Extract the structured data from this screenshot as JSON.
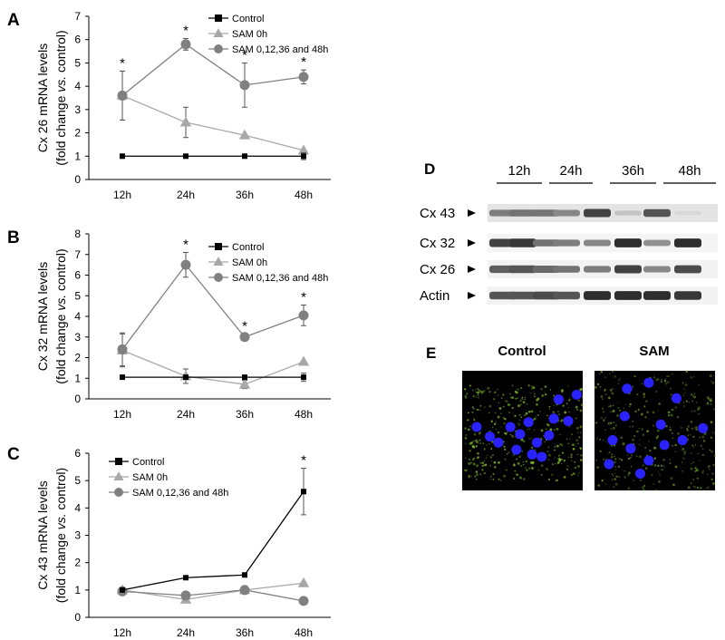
{
  "chart_data": [
    {
      "panel": "A",
      "type": "line",
      "categories": [
        "12h",
        "24h",
        "36h",
        "48h"
      ],
      "ylabel_line1": "Cx 26 mRNA levels",
      "ylabel_line2": "(fold change vs. control)",
      "ylim": [
        0,
        7
      ],
      "yticks": [
        0,
        1,
        2,
        3,
        4,
        5,
        6,
        7
      ],
      "legend_position": "top-right",
      "series": [
        {
          "name": "Control",
          "marker": "square",
          "color": "#000000",
          "values": [
            1,
            1,
            1,
            1
          ],
          "errors": [
            0,
            0,
            0,
            0.15
          ]
        },
        {
          "name": "SAM 0h",
          "marker": "triangle",
          "color": "#a8a8a8",
          "values": [
            3.6,
            2.45,
            1.9,
            1.25
          ],
          "errors": [
            1.05,
            0.65,
            0,
            0
          ]
        },
        {
          "name": "SAM 0,12,36 and 48h",
          "marker": "circle",
          "color": "#808080",
          "values": [
            3.6,
            5.8,
            4.05,
            4.4
          ],
          "errors": [
            1.05,
            0.25,
            0.95,
            0.3
          ]
        }
      ],
      "significance": [
        "*",
        "*",
        "*",
        "*"
      ]
    },
    {
      "panel": "B",
      "type": "line",
      "categories": [
        "12h",
        "24h",
        "36h",
        "48h"
      ],
      "ylabel_line1": "Cx 32 mRNA levels",
      "ylabel_line2": "(fold change vs. control)",
      "ylim": [
        0,
        8
      ],
      "yticks": [
        0,
        1,
        2,
        3,
        4,
        5,
        6,
        7,
        8
      ],
      "legend_position": "top-right",
      "series": [
        {
          "name": "Control",
          "marker": "square",
          "color": "#000000",
          "values": [
            1.05,
            1.05,
            1.05,
            1.05
          ],
          "errors": [
            0,
            0,
            0,
            0.2
          ]
        },
        {
          "name": "SAM 0h",
          "marker": "triangle",
          "color": "#a8a8a8",
          "values": [
            2.35,
            1.1,
            0.7,
            1.8
          ],
          "errors": [
            0.8,
            0.35,
            0.2,
            0
          ]
        },
        {
          "name": "SAM 0,12,36 and 48h",
          "marker": "circle",
          "color": "#808080",
          "values": [
            2.4,
            6.5,
            3.0,
            4.05
          ],
          "errors": [
            0.8,
            0.6,
            0.15,
            0.5
          ]
        }
      ],
      "significance": [
        "",
        "*",
        "*",
        "*"
      ]
    },
    {
      "panel": "C",
      "type": "line",
      "categories": [
        "12h",
        "24h",
        "36h",
        "48h"
      ],
      "ylabel_line1": "Cx 43 mRNA levels",
      "ylabel_line2": "(fold change vs. control)",
      "ylim": [
        0,
        6
      ],
      "yticks": [
        0,
        1,
        2,
        3,
        4,
        5,
        6
      ],
      "legend_position": "top-left",
      "series": [
        {
          "name": "Control",
          "marker": "square",
          "color": "#000000",
          "values": [
            1.0,
            1.45,
            1.55,
            4.6
          ],
          "errors": [
            0,
            0,
            0,
            0.85
          ]
        },
        {
          "name": "SAM 0h",
          "marker": "triangle",
          "color": "#a8a8a8",
          "values": [
            1.0,
            0.65,
            1.0,
            1.25
          ],
          "errors": [
            0,
            0,
            0,
            0
          ]
        },
        {
          "name": "SAM 0,12,36 and 48h",
          "marker": "circle",
          "color": "#808080",
          "values": [
            0.95,
            0.8,
            1.0,
            0.6
          ],
          "errors": [
            0,
            0,
            0.15,
            0
          ]
        }
      ],
      "significance": [
        "",
        "",
        "",
        "*"
      ]
    }
  ],
  "panel_d": {
    "letter": "D",
    "timepoints": [
      "12h",
      "24h",
      "36h",
      "48h"
    ],
    "rows": [
      {
        "label": "Cx 43",
        "intensities": [
          0.55,
          0.6,
          0.6,
          0.5,
          0.85,
          0.2,
          0.75,
          0.1
        ]
      },
      {
        "label": "Cx 32",
        "intensities": [
          0.85,
          0.9,
          0.6,
          0.55,
          0.5,
          0.95,
          0.45,
          0.95
        ]
      },
      {
        "label": "Cx 26",
        "intensities": [
          0.7,
          0.75,
          0.65,
          0.6,
          0.55,
          0.85,
          0.5,
          0.8
        ]
      },
      {
        "label": "Actin",
        "intensities": [
          0.75,
          0.75,
          0.8,
          0.75,
          0.95,
          0.95,
          0.95,
          0.9
        ]
      }
    ]
  },
  "panel_e": {
    "letter": "E",
    "images": [
      {
        "label": "Control",
        "nuclei": [
          [
            0.12,
            0.47
          ],
          [
            0.23,
            0.55
          ],
          [
            0.3,
            0.6
          ],
          [
            0.4,
            0.47
          ],
          [
            0.48,
            0.53
          ],
          [
            0.55,
            0.43
          ],
          [
            0.62,
            0.6
          ],
          [
            0.72,
            0.54
          ],
          [
            0.76,
            0.4
          ],
          [
            0.8,
            0.24
          ],
          [
            0.66,
            0.72
          ],
          [
            0.58,
            0.7
          ],
          [
            0.88,
            0.42
          ],
          [
            0.95,
            0.2
          ],
          [
            0.45,
            0.66
          ]
        ],
        "green": "#8ac62e",
        "nucleus": "#2a22ff"
      },
      {
        "label": "SAM",
        "nuclei": [
          [
            0.27,
            0.15
          ],
          [
            0.45,
            0.1
          ],
          [
            0.25,
            0.38
          ],
          [
            0.68,
            0.23
          ],
          [
            0.55,
            0.45
          ],
          [
            0.15,
            0.58
          ],
          [
            0.3,
            0.65
          ],
          [
            0.58,
            0.62
          ],
          [
            0.73,
            0.58
          ],
          [
            0.45,
            0.75
          ],
          [
            0.38,
            0.86
          ],
          [
            0.12,
            0.78
          ],
          [
            0.9,
            0.48
          ]
        ],
        "green": "#6f9c2a",
        "nucleus": "#2a22ff"
      }
    ]
  }
}
